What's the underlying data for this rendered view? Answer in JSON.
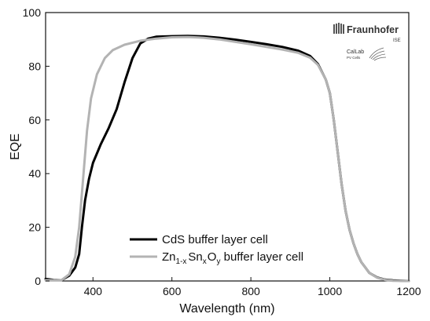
{
  "chart_data": {
    "type": "line",
    "xlabel": "Wavelength (nm)",
    "ylabel": "EQE",
    "xlim": [
      280,
      1200
    ],
    "ylim": [
      0,
      100
    ],
    "xticks": [
      400,
      600,
      800,
      1000,
      1200
    ],
    "yticks": [
      0,
      20,
      40,
      60,
      80,
      100
    ],
    "grid": false,
    "legend_position": "bottom-center",
    "series": [
      {
        "name": "CdS buffer layer cell",
        "color": "#000000",
        "points": [
          [
            280,
            0.8
          ],
          [
            300,
            0.4
          ],
          [
            320,
            0.3
          ],
          [
            340,
            2
          ],
          [
            355,
            5
          ],
          [
            365,
            10
          ],
          [
            372,
            20
          ],
          [
            380,
            30
          ],
          [
            390,
            38
          ],
          [
            400,
            44
          ],
          [
            420,
            51
          ],
          [
            440,
            57
          ],
          [
            460,
            64
          ],
          [
            480,
            74
          ],
          [
            500,
            83
          ],
          [
            520,
            88.5
          ],
          [
            540,
            90.3
          ],
          [
            560,
            91
          ],
          [
            600,
            91.2
          ],
          [
            640,
            91.3
          ],
          [
            680,
            91.1
          ],
          [
            720,
            90.6
          ],
          [
            760,
            89.9
          ],
          [
            800,
            89.1
          ],
          [
            840,
            88.2
          ],
          [
            880,
            87.2
          ],
          [
            920,
            85.8
          ],
          [
            950,
            83.8
          ],
          [
            970,
            80.8
          ],
          [
            990,
            75
          ],
          [
            1000,
            70
          ],
          [
            1010,
            60
          ],
          [
            1020,
            48
          ],
          [
            1030,
            36
          ],
          [
            1040,
            26
          ],
          [
            1050,
            19
          ],
          [
            1060,
            14
          ],
          [
            1070,
            10
          ],
          [
            1080,
            7
          ],
          [
            1090,
            5
          ],
          [
            1100,
            3
          ],
          [
            1120,
            1.3
          ],
          [
            1140,
            0.5
          ],
          [
            1160,
            0.2
          ],
          [
            1200,
            0
          ]
        ]
      },
      {
        "name": "Zn1-xSnxOy buffer layer cell",
        "name_parts": {
          "base1": "Zn",
          "sub1": "1-x",
          "base2": "Sn",
          "sub2": "x",
          "base3": "O",
          "sub3": "y",
          "rest": " buffer layer cell"
        },
        "color": "#b3b3b3",
        "points": [
          [
            280,
            0.3
          ],
          [
            320,
            0.3
          ],
          [
            340,
            2.5
          ],
          [
            355,
            9
          ],
          [
            365,
            20
          ],
          [
            375,
            38
          ],
          [
            385,
            56
          ],
          [
            395,
            68
          ],
          [
            410,
            77
          ],
          [
            430,
            83
          ],
          [
            450,
            86
          ],
          [
            480,
            88
          ],
          [
            520,
            89.5
          ],
          [
            560,
            90.3
          ],
          [
            600,
            90.8
          ],
          [
            640,
            90.9
          ],
          [
            680,
            90.6
          ],
          [
            720,
            90
          ],
          [
            760,
            89.1
          ],
          [
            800,
            88.2
          ],
          [
            840,
            87.2
          ],
          [
            880,
            86.2
          ],
          [
            920,
            85
          ],
          [
            950,
            83.2
          ],
          [
            970,
            80.5
          ],
          [
            990,
            75
          ],
          [
            1000,
            70
          ],
          [
            1010,
            60
          ],
          [
            1020,
            48
          ],
          [
            1030,
            36
          ],
          [
            1040,
            26
          ],
          [
            1050,
            19
          ],
          [
            1060,
            14
          ],
          [
            1070,
            10
          ],
          [
            1080,
            7
          ],
          [
            1090,
            5
          ],
          [
            1100,
            3
          ],
          [
            1120,
            1.2
          ],
          [
            1140,
            0.4
          ],
          [
            1160,
            0.1
          ],
          [
            1200,
            0
          ]
        ]
      }
    ]
  },
  "logos": {
    "fraunhofer": {
      "name": "Fraunhofer",
      "sub": "ISE"
    },
    "callab": {
      "name": "CalLab",
      "sub": "PV Cells"
    }
  }
}
